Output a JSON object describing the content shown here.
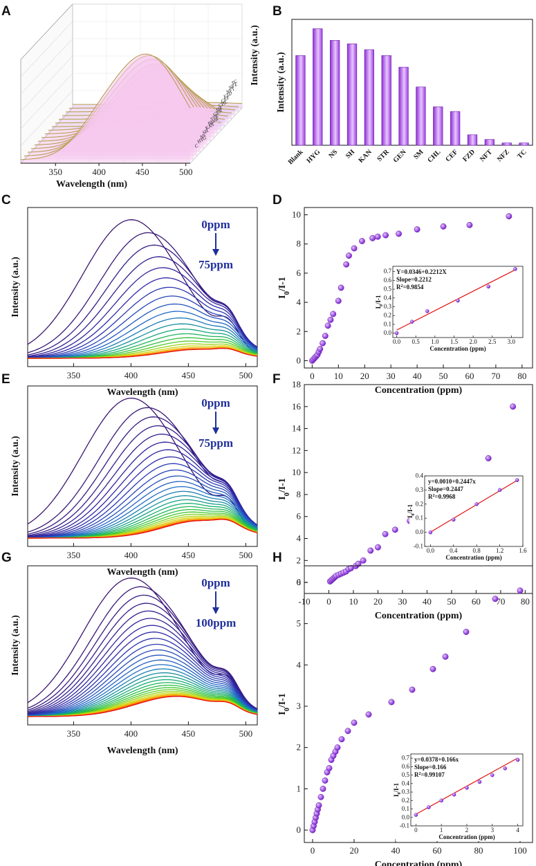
{
  "panels": {
    "A": "A",
    "B": "B",
    "C": "C",
    "D": "D",
    "E": "E",
    "F": "F",
    "G": "G",
    "H": "H"
  },
  "chart_data": [
    {
      "panel": "A",
      "type": "line",
      "subtype": "3d-waterfall",
      "xlabel": "Wavelength (nm)",
      "ylabel": "Intensity (a.u.)",
      "xticks": [
        350,
        400,
        450,
        500
      ],
      "xlim": [
        310,
        505
      ],
      "series_labels": [
        "C",
        "HYG",
        "NS",
        "SH",
        "KAN",
        "Blank",
        "STR",
        "GEN",
        "SM",
        "CHL",
        "CEF",
        "FZD",
        "NFT",
        "NFZ",
        "TC"
      ],
      "note": "Stacked fluorescence emission spectra of the probe with different antibiotics; peak near 455 nm"
    },
    {
      "panel": "B",
      "type": "bar",
      "ylabel": "Intensity (a.u.)",
      "categories": [
        "Blank",
        "HYG",
        "NS",
        "SH",
        "KAN",
        "STR",
        "GEN",
        "SM",
        "CHL",
        "CEF",
        "FZD",
        "NFT",
        "NFZ",
        "TC"
      ],
      "values": [
        0.77,
        1.0,
        0.9,
        0.87,
        0.82,
        0.77,
        0.67,
        0.5,
        0.33,
        0.29,
        0.09,
        0.05,
        0.02,
        0.02
      ],
      "ylim": [
        0,
        1.08
      ]
    },
    {
      "panel": "C",
      "type": "line",
      "xlabel": "Wavelength (nm)",
      "ylabel": "Intensity (a.u.)",
      "xlim": [
        310,
        510
      ],
      "xticks": [
        350,
        400,
        450,
        500
      ],
      "annotation_top": "0ppm",
      "annotation_bottom": "75ppm",
      "n_curves": 22,
      "peak_start_nm": 400,
      "peak_end_nm": 455,
      "shoulder_nm": 485,
      "max_intensity": 1.0,
      "min_intensity": 0.04
    },
    {
      "panel": "D",
      "type": "scatter",
      "xlabel": "Concentration (ppm)",
      "ylabel": "I",
      "ylabel_sub": "0",
      "ylabel_tail": "/I-1",
      "xlim": [
        -3,
        84
      ],
      "ylim": [
        -0.5,
        10.5
      ],
      "xticks": [
        0,
        10,
        20,
        30,
        40,
        50,
        60,
        70,
        80
      ],
      "yticks": [
        0,
        2,
        4,
        6,
        8,
        10
      ],
      "x": [
        0,
        0.5,
        1,
        1.5,
        2,
        2.5,
        3,
        4,
        5,
        6,
        7,
        8,
        10,
        11,
        13,
        14,
        16,
        19,
        23,
        25,
        28,
        33,
        40,
        50,
        60,
        75
      ],
      "y": [
        0,
        0.1,
        0.2,
        0.3,
        0.4,
        0.6,
        0.8,
        1.2,
        1.7,
        2.4,
        2.8,
        3.2,
        4.1,
        5.0,
        6.6,
        7.2,
        7.7,
        8.2,
        8.4,
        8.5,
        8.6,
        8.7,
        9.0,
        9.2,
        9.3,
        9.9
      ],
      "inset": {
        "xlabel": "Concentration (ppm)",
        "ylabel": "I",
        "ylabel_sub": "0",
        "ylabel_tail": "/I-1",
        "xlim": [
          -0.1,
          3.3
        ],
        "ylim": [
          -0.05,
          0.76
        ],
        "xticks": [
          0.0,
          0.5,
          1.0,
          1.5,
          2.0,
          2.5,
          3.0
        ],
        "yticks": [
          0.0,
          0.1,
          0.2,
          0.3,
          0.4,
          0.5,
          0.6,
          0.7
        ],
        "x": [
          0,
          0.4,
          0.8,
          1.6,
          2.4,
          3.1
        ],
        "y": [
          0.0,
          0.13,
          0.25,
          0.37,
          0.53,
          0.73
        ],
        "fit_intercept": 0.0346,
        "fit_slope": 0.2212,
        "eq": "Y=0.0346+0.2212X",
        "slope": "Slope=0.2212",
        "r2_prefix": "R",
        "r2_sup": "2",
        "r2_value": "=0.9854"
      }
    },
    {
      "panel": "E",
      "type": "line",
      "xlabel": "Wavelength (nm)",
      "ylabel": "Intensity (a.u.)",
      "xlim": [
        310,
        510
      ],
      "xticks": [
        350,
        400,
        450,
        500
      ],
      "annotation_top": "0ppm",
      "annotation_bottom": "75ppm",
      "n_curves": 28,
      "peak_start_nm": 400,
      "peak_end_nm": 460,
      "shoulder_nm": 485,
      "max_intensity": 1.0,
      "min_intensity": 0.1
    },
    {
      "panel": "F",
      "type": "scatter",
      "xlabel": "Concentration (ppm)",
      "ylabel": "I",
      "ylabel_sub": "0",
      "ylabel_tail": "/I-1",
      "xlim": [
        -10,
        83
      ],
      "ylim": [
        -1,
        18
      ],
      "xticks": [
        -10,
        0,
        10,
        20,
        30,
        40,
        50,
        60,
        70,
        80
      ],
      "yticks": [
        0,
        2,
        4,
        6,
        8,
        10,
        12,
        14,
        16,
        18
      ],
      "x": [
        0.5,
        1,
        1.5,
        2,
        2.5,
        3,
        4,
        5,
        6,
        7,
        8,
        9,
        11,
        12,
        14,
        17,
        20,
        23,
        27,
        33,
        38,
        43,
        48,
        56,
        65,
        75
      ],
      "y": [
        0.1,
        0.2,
        0.3,
        0.4,
        0.5,
        0.6,
        0.7,
        0.8,
        0.9,
        1.0,
        1.2,
        1.3,
        1.5,
        1.7,
        2.0,
        2.9,
        3.2,
        4.4,
        4.8,
        5.6,
        7.2,
        8.5,
        8.6,
        9.3,
        11.3,
        16.0
      ],
      "inset": {
        "xlabel": "Concentration (ppm)",
        "ylabel": "I",
        "ylabel_sub": "0",
        "ylabel_tail": "/I-1",
        "xlim": [
          -0.1,
          1.6
        ],
        "ylim": [
          -0.1,
          0.4
        ],
        "xticks": [
          0.0,
          0.4,
          0.8,
          1.2,
          1.6
        ],
        "yticks": [
          -0.1,
          0.0,
          0.1,
          0.2,
          0.3,
          0.4
        ],
        "x": [
          0,
          0.4,
          0.8,
          1.2,
          1.5
        ],
        "y": [
          0.0,
          0.09,
          0.2,
          0.3,
          0.37
        ],
        "fit_intercept": 0.001,
        "fit_slope": 0.2447,
        "eq": "y=0.0010+0.2447x",
        "slope": "Slope=0.2447",
        "r2_prefix": "R",
        "r2_sup": "2",
        "r2_value": "=0.9968"
      }
    },
    {
      "panel": "G",
      "type": "line",
      "xlabel": "Wavelength (nm)",
      "ylabel": "Intensity (a.u.)",
      "xlim": [
        310,
        510
      ],
      "xticks": [
        350,
        400,
        450,
        500
      ],
      "annotation_top": "0ppm",
      "annotation_bottom": "100ppm",
      "n_curves": 30,
      "peak_start_nm": 400,
      "peak_end_nm": 435,
      "shoulder_nm": 485,
      "max_intensity": 1.0,
      "min_intensity": 0.13
    },
    {
      "panel": "H",
      "type": "scatter",
      "xlabel": "Concentration (ppm)",
      "ylabel": "I",
      "ylabel_sub": "0",
      "ylabel_tail": "/I-1",
      "xlim": [
        -4,
        106
      ],
      "ylim": [
        -0.3,
        6.4
      ],
      "xticks": [
        0,
        20,
        40,
        60,
        80,
        100
      ],
      "yticks": [
        0,
        1,
        2,
        3,
        4,
        5,
        6
      ],
      "x": [
        0,
        0.5,
        1,
        1.5,
        2,
        2.5,
        3,
        4,
        5,
        6,
        7,
        8,
        9,
        10,
        11,
        12,
        14,
        17,
        20,
        27,
        38,
        48,
        58,
        64,
        74,
        88,
        100
      ],
      "y": [
        0.0,
        0.1,
        0.2,
        0.3,
        0.4,
        0.5,
        0.6,
        0.8,
        1.0,
        1.2,
        1.4,
        1.5,
        1.7,
        1.8,
        1.9,
        2.0,
        2.2,
        2.4,
        2.6,
        2.8,
        3.1,
        3.4,
        3.9,
        4.2,
        4.8,
        5.6,
        5.8
      ],
      "inset": {
        "xlabel": "Concentration (ppm)",
        "ylabel": "I",
        "ylabel_sub": "0",
        "ylabel_tail": "/I-1",
        "xlim": [
          -0.2,
          4.2
        ],
        "ylim": [
          -0.1,
          0.75
        ],
        "xticks": [
          0,
          1,
          2,
          3,
          4
        ],
        "yticks": [
          -0.1,
          0.0,
          0.1,
          0.2,
          0.3,
          0.4,
          0.5,
          0.6,
          0.7
        ],
        "x": [
          0,
          0.5,
          1,
          1.5,
          2,
          2.5,
          3,
          3.5,
          4
        ],
        "y": [
          0.03,
          0.12,
          0.2,
          0.27,
          0.35,
          0.42,
          0.5,
          0.58,
          0.68
        ],
        "fit_intercept": 0.0378,
        "fit_slope": 0.166,
        "eq": "y=0.0378+0.166x",
        "slope": "Slope=0.166",
        "r2_prefix": "R",
        "r2_sup": "2",
        "r2_value": "=0.99107"
      }
    }
  ]
}
